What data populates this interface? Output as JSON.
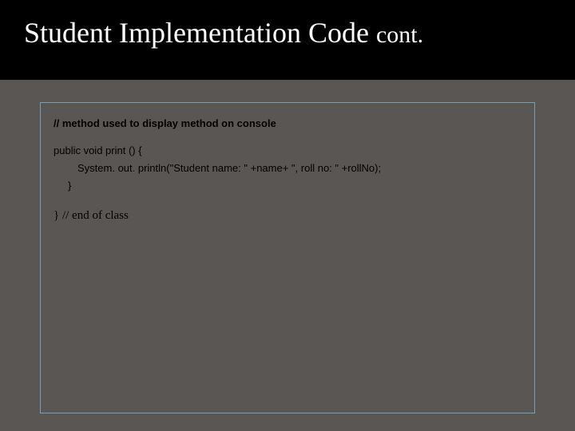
{
  "header": {
    "title_main": "Student Implementation Code ",
    "title_suffix": "cont.",
    "title_color": "#ffffff",
    "header_bg": "#000000",
    "title_fontsize_main": 36,
    "title_fontsize_suffix": 30
  },
  "slide": {
    "background_color": "#5a5654",
    "box_border_color": "#7a9db8"
  },
  "content": {
    "comment": "// method used to display method on console",
    "code_line1": "public void print () {",
    "code_line2": "System. out. println(\"Student name: \" +name+ \", roll no: \" +rollNo);",
    "code_line3": "}",
    "code_end": "} // end of class",
    "text_color": "#000000",
    "code_fontsize": 13,
    "end_fontsize": 15
  }
}
